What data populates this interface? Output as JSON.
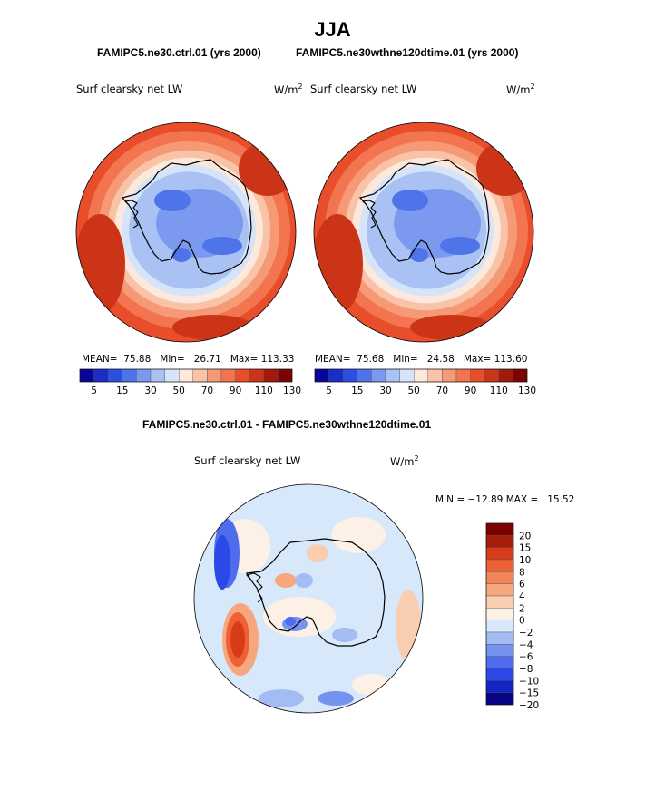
{
  "figure": {
    "season": "JJA",
    "header_left": "FAMIPC5.ne30.ctrl.01 (yrs 2000)",
    "header_right": "FAMIPC5.ne30wthne120dtime.01 (yrs 2000)",
    "diff_title": "FAMIPC5.ne30.ctrl.01 - FAMIPC5.ne30wthne120dtime.01"
  },
  "colors": {
    "abs_scale": [
      "#08069a",
      "#1a2dc4",
      "#2a50e0",
      "#4f74ea",
      "#7b99ee",
      "#a9c1f3",
      "#d6e4fa",
      "#fde8dc",
      "#f9c3a7",
      "#f69a76",
      "#f2754f",
      "#e94e2c",
      "#cc3418",
      "#a01b0c",
      "#7a0404"
    ],
    "diff_scale": [
      "#070583",
      "#1424c3",
      "#2c48e6",
      "#4e6cec",
      "#7592ef",
      "#a3bdf4",
      "#d8e8fb",
      "#fdf0e6",
      "#f9cdb0",
      "#f6a77e",
      "#f3855b",
      "#ed6137",
      "#d63c1a",
      "#a81c0a",
      "#7c0202"
    ],
    "coast": "#000000"
  },
  "chart_data": [
    {
      "type": "contour-map",
      "projection": "south-polar-stereographic",
      "title": "FAMIPC5.ne30.ctrl.01 (yrs 2000)",
      "field_label": "Surf clearsky net LW",
      "units_base": "W/m",
      "units_exp": "2",
      "stats": {
        "mean_label": "MEAN=",
        "mean": "75.88",
        "min_label": "Min=",
        "min": "26.71",
        "max_label": "Max=",
        "max": "113.33"
      },
      "levels": [
        5,
        10,
        15,
        20,
        30,
        40,
        50,
        60,
        70,
        80,
        90,
        100,
        110,
        120,
        130
      ],
      "tick_labels": [
        "5",
        "15",
        "30",
        "50",
        "70",
        "90",
        "110",
        "130"
      ]
    },
    {
      "type": "contour-map",
      "projection": "south-polar-stereographic",
      "title": "FAMIPC5.ne30wthne120dtime.01 (yrs 2000)",
      "field_label": "Surf clearsky net LW",
      "units_base": "W/m",
      "units_exp": "2",
      "stats": {
        "mean_label": "MEAN=",
        "mean": "75.68",
        "min_label": "Min=",
        "min": "24.58",
        "max_label": "Max=",
        "max": "113.60"
      },
      "levels": [
        5,
        10,
        15,
        20,
        30,
        40,
        50,
        60,
        70,
        80,
        90,
        100,
        110,
        120,
        130
      ],
      "tick_labels": [
        "5",
        "15",
        "30",
        "50",
        "70",
        "90",
        "110",
        "130"
      ]
    },
    {
      "type": "contour-map",
      "projection": "south-polar-stereographic",
      "title": "FAMIPC5.ne30.ctrl.01 - FAMIPC5.ne30wthne120dtime.01",
      "field_label": "Surf clearsky net LW",
      "units_base": "W/m",
      "units_exp": "2",
      "stats": {
        "min_label": "MIN =",
        "min": "−12.89",
        "max_label": "MAX =",
        "max": "15.52"
      },
      "levels": [
        -20,
        -15,
        -10,
        -8,
        -6,
        -4,
        -2,
        0,
        2,
        4,
        6,
        8,
        10,
        15,
        20
      ],
      "tick_labels": [
        "20",
        "15",
        "10",
        "8",
        "6",
        "4",
        "2",
        "0",
        "−2",
        "−4",
        "−6",
        "−8",
        "−10",
        "−15",
        "−20"
      ]
    }
  ]
}
